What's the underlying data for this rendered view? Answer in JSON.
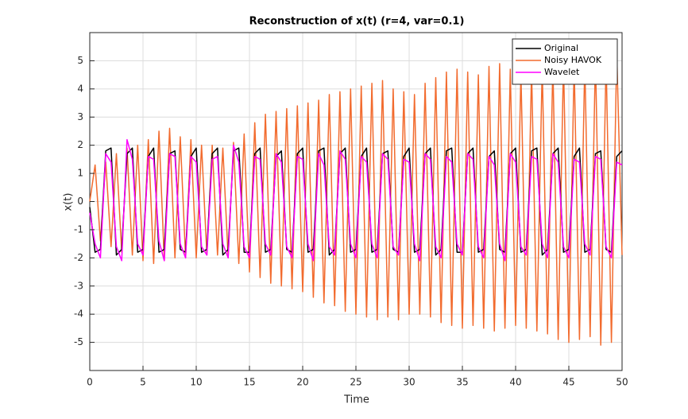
{
  "chart_data": {
    "type": "line",
    "title": "Reconstruction of x(t) (r=4, var=0.1)",
    "xlabel": "Time",
    "ylabel": "x(t)",
    "xlim": [
      0,
      50
    ],
    "ylim": [
      -6,
      6
    ],
    "xticks": [
      0,
      5,
      10,
      15,
      20,
      25,
      30,
      35,
      40,
      45,
      50
    ],
    "yticks": [
      -5,
      -4,
      -3,
      -2,
      -1,
      0,
      1,
      2,
      3,
      4,
      5
    ],
    "grid": true,
    "legend_position": "northeast",
    "x": [
      0,
      0.5,
      1,
      1.5,
      2,
      2.5,
      3,
      3.5,
      4,
      4.5,
      5,
      5.5,
      6,
      6.5,
      7,
      7.5,
      8,
      8.5,
      9,
      9.5,
      10,
      10.5,
      11,
      11.5,
      12,
      12.5,
      13,
      13.5,
      14,
      14.5,
      15,
      15.5,
      16,
      16.5,
      17,
      17.5,
      18,
      18.5,
      19,
      19.5,
      20,
      20.5,
      21,
      21.5,
      22,
      22.5,
      23,
      23.5,
      24,
      24.5,
      25,
      25.5,
      26,
      26.5,
      27,
      27.5,
      28,
      28.5,
      29,
      29.5,
      30,
      30.5,
      31,
      31.5,
      32,
      32.5,
      33,
      33.5,
      34,
      34.5,
      35,
      35.5,
      36,
      36.5,
      37,
      37.5,
      38,
      38.5,
      39,
      39.5,
      40,
      40.5,
      41,
      41.5,
      42,
      42.5,
      43,
      43.5,
      44,
      44.5,
      45,
      45.5,
      46,
      46.5,
      47,
      47.5,
      48,
      48.5,
      49,
      49.5,
      50
    ],
    "series": [
      {
        "name": "Original",
        "color": "#000000",
        "values": [
          -0.2,
          -1.8,
          -1.7,
          1.8,
          1.9,
          -1.9,
          -1.7,
          1.7,
          1.9,
          -1.8,
          -1.7,
          1.6,
          1.9,
          -1.8,
          -1.7,
          1.7,
          1.8,
          -1.7,
          -1.8,
          1.6,
          1.9,
          -1.8,
          -1.7,
          1.7,
          1.9,
          -1.9,
          -1.7,
          1.8,
          1.9,
          -1.8,
          -1.8,
          1.7,
          1.9,
          -1.8,
          -1.7,
          1.6,
          1.8,
          -1.7,
          -1.8,
          1.7,
          1.9,
          -1.8,
          -1.7,
          1.8,
          1.9,
          -1.9,
          -1.7,
          1.7,
          1.9,
          -1.8,
          -1.7,
          1.6,
          1.9,
          -1.8,
          -1.7,
          1.7,
          1.8,
          -1.7,
          -1.8,
          1.6,
          1.9,
          -1.8,
          -1.7,
          1.7,
          1.9,
          -1.9,
          -1.7,
          1.8,
          1.9,
          -1.8,
          -1.8,
          1.7,
          1.9,
          -1.8,
          -1.7,
          1.6,
          1.8,
          -1.7,
          -1.8,
          1.7,
          1.9,
          -1.8,
          -1.7,
          1.8,
          1.9,
          -1.9,
          -1.7,
          1.7,
          1.9,
          -1.8,
          -1.7,
          1.6,
          1.9,
          -1.8,
          -1.7,
          1.7,
          1.8,
          -1.7,
          -1.8,
          1.6,
          1.8
        ]
      },
      {
        "name": "Noisy HAVOK",
        "color": "#f26b2e",
        "values": [
          0,
          1.3,
          -1.4,
          1.4,
          -1.6,
          1.7,
          -1.8,
          1.9,
          -1.9,
          2.0,
          -2.1,
          2.2,
          -2.2,
          2.5,
          -2.1,
          2.6,
          -2.0,
          2.3,
          -2.0,
          2.2,
          -2.0,
          2.0,
          -1.9,
          2.0,
          -1.9,
          1.9,
          -2.0,
          2.1,
          -2.2,
          2.4,
          -2.5,
          2.8,
          -2.7,
          3.1,
          -2.9,
          3.2,
          -3.0,
          3.3,
          -3.1,
          3.4,
          -3.2,
          3.5,
          -3.4,
          3.6,
          -3.6,
          3.8,
          -3.7,
          3.9,
          -3.9,
          4.0,
          -4.0,
          4.1,
          -4.1,
          4.2,
          -4.2,
          4.3,
          -4.1,
          4.0,
          -4.2,
          3.9,
          -4.0,
          3.8,
          -4.0,
          4.2,
          -4.1,
          4.4,
          -4.3,
          4.6,
          -4.4,
          4.7,
          -4.5,
          4.6,
          -4.4,
          4.5,
          -4.5,
          4.8,
          -4.6,
          4.9,
          -4.5,
          4.7,
          -4.4,
          4.6,
          -4.5,
          4.7,
          -4.6,
          4.8,
          -4.7,
          4.9,
          -4.9,
          5.0,
          -5.0,
          4.9,
          -4.9,
          5.0,
          -4.8,
          5.2,
          -5.1,
          5.1,
          -5.0,
          5.3,
          -1.9
        ]
      },
      {
        "name": "Wavelet",
        "color": "#ff00ff",
        "values": [
          -0.4,
          -1.5,
          -2.0,
          1.7,
          1.4,
          -1.6,
          -2.1,
          2.2,
          1.5,
          -1.5,
          -1.9,
          1.6,
          1.5,
          -1.4,
          -2.1,
          1.7,
          1.6,
          -1.5,
          -2.0,
          1.6,
          1.4,
          -1.6,
          -1.9,
          1.5,
          1.6,
          -1.5,
          -2.0,
          2.0,
          1.4,
          -1.6,
          -2.0,
          1.6,
          1.5,
          -1.5,
          -1.9,
          1.7,
          1.4,
          -1.6,
          -2.0,
          1.6,
          1.5,
          -1.5,
          -2.1,
          1.7,
          1.3,
          -1.6,
          -1.9,
          1.8,
          1.5,
          -1.5,
          -2.0,
          1.6,
          1.4,
          -1.5,
          -2.0,
          1.7,
          1.5,
          -1.6,
          -1.9,
          1.5,
          1.4,
          -1.5,
          -2.1,
          1.7,
          1.5,
          -1.6,
          -2.0,
          1.6,
          1.4,
          -1.5,
          -1.9,
          1.7,
          1.5,
          -1.6,
          -2.0,
          1.6,
          1.3,
          -1.5,
          -2.1,
          1.7,
          1.4,
          -1.6,
          -1.9,
          1.6,
          1.5,
          -1.5,
          -2.0,
          1.7,
          1.4,
          -1.6,
          -2.0,
          1.5,
          1.4,
          -1.5,
          -1.9,
          1.6,
          1.5,
          -1.6,
          -2.0,
          1.4,
          1.3
        ]
      }
    ]
  }
}
